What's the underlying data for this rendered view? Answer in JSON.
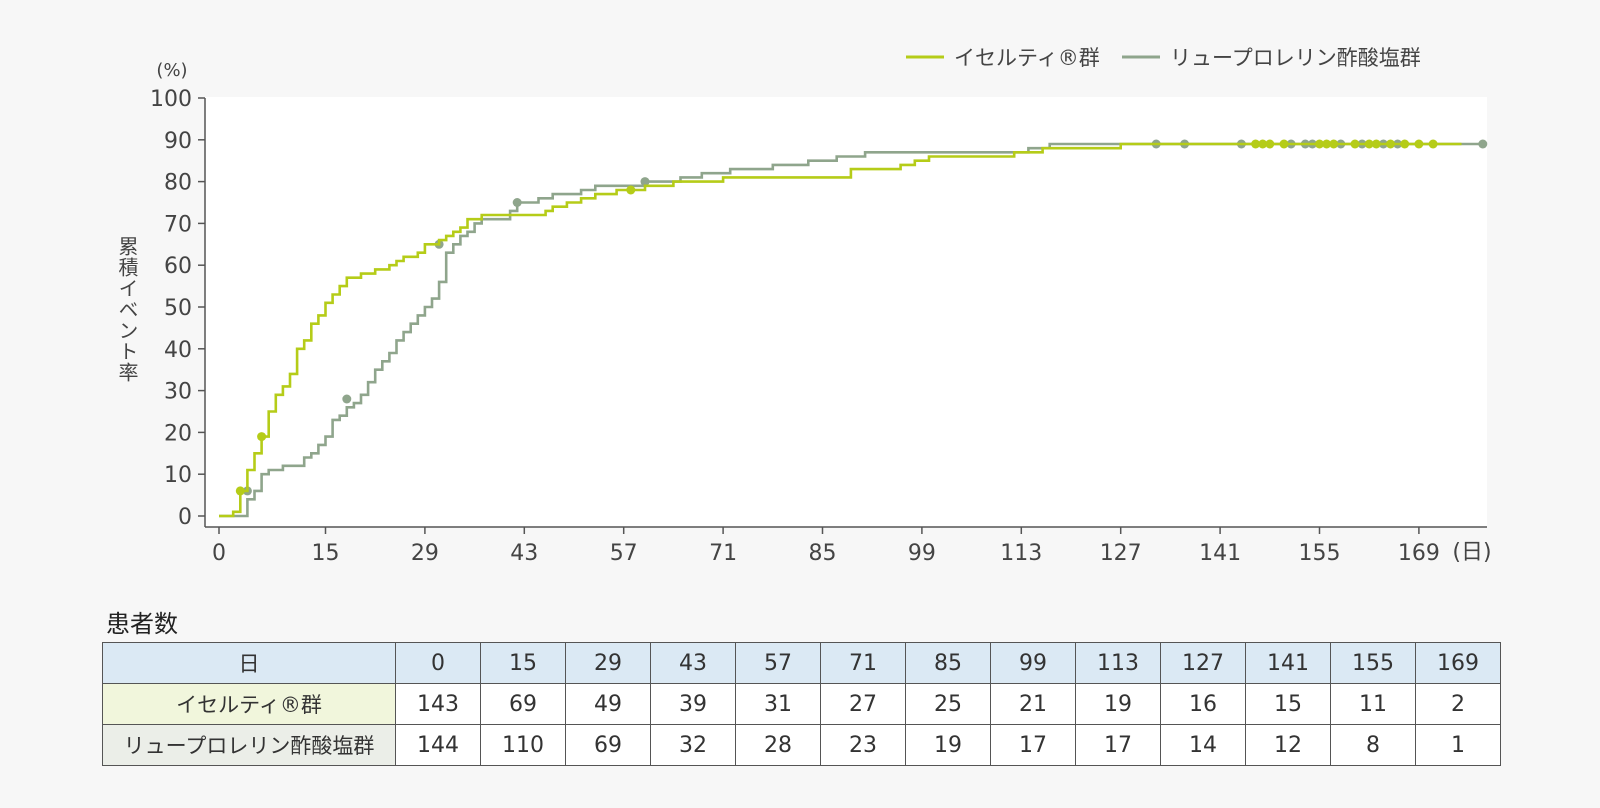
{
  "chart_data": {
    "type": "line",
    "subtype": "step",
    "xlabel": "(日)",
    "ylabel": "累積イベント率",
    "y_unit": "(%)",
    "xlim": [
      0,
      169
    ],
    "ylim": [
      0,
      100
    ],
    "x_ticks": [
      "0",
      "15",
      "29",
      "43",
      "57",
      "71",
      "85",
      "99",
      "113",
      "127",
      "141",
      "155",
      "169"
    ],
    "y_ticks": [
      "0",
      "10",
      "20",
      "30",
      "40",
      "50",
      "60",
      "70",
      "80",
      "90",
      "100"
    ],
    "grid": false,
    "legend_position": "top-right",
    "series": [
      {
        "name": "イセルティ®群",
        "color": "#b5cc18",
        "points": [
          [
            0,
            0
          ],
          [
            2,
            1
          ],
          [
            3,
            6
          ],
          [
            4,
            11
          ],
          [
            5,
            15
          ],
          [
            6,
            19
          ],
          [
            7,
            25
          ],
          [
            8,
            29
          ],
          [
            9,
            31
          ],
          [
            10,
            34
          ],
          [
            11,
            40
          ],
          [
            12,
            42
          ],
          [
            13,
            46
          ],
          [
            14,
            48
          ],
          [
            15,
            51
          ],
          [
            16,
            53
          ],
          [
            17,
            55
          ],
          [
            18,
            57
          ],
          [
            20,
            58
          ],
          [
            22,
            59
          ],
          [
            24,
            60
          ],
          [
            25,
            61
          ],
          [
            26,
            62
          ],
          [
            28,
            63
          ],
          [
            29,
            65
          ],
          [
            31,
            66
          ],
          [
            32,
            67
          ],
          [
            33,
            68
          ],
          [
            34,
            69
          ],
          [
            35,
            71
          ],
          [
            37,
            72
          ],
          [
            46,
            73
          ],
          [
            47,
            74
          ],
          [
            49,
            75
          ],
          [
            51,
            76
          ],
          [
            53,
            77
          ],
          [
            56,
            78
          ],
          [
            60,
            79
          ],
          [
            64,
            80
          ],
          [
            71,
            81
          ],
          [
            89,
            83
          ],
          [
            96,
            84
          ],
          [
            98,
            85
          ],
          [
            100,
            86
          ],
          [
            112,
            87
          ],
          [
            116,
            88
          ],
          [
            127,
            89
          ],
          [
            175,
            89
          ]
        ],
        "censored": [
          [
            3,
            6
          ],
          [
            6,
            19
          ],
          [
            58,
            78
          ],
          [
            146,
            89
          ],
          [
            147,
            89
          ],
          [
            148,
            89
          ],
          [
            150,
            89
          ],
          [
            155,
            89
          ],
          [
            156,
            89
          ],
          [
            157,
            89
          ],
          [
            160,
            89
          ],
          [
            162,
            89
          ],
          [
            163,
            89
          ],
          [
            165,
            89
          ],
          [
            167,
            89
          ],
          [
            169,
            89
          ],
          [
            171,
            89
          ]
        ]
      },
      {
        "name": "リュープロレリン酢酸塩群",
        "color": "#8fa58c",
        "points": [
          [
            0,
            0
          ],
          [
            4,
            4
          ],
          [
            5,
            6
          ],
          [
            6,
            10
          ],
          [
            7,
            11
          ],
          [
            9,
            12
          ],
          [
            12,
            14
          ],
          [
            13,
            15
          ],
          [
            14,
            17
          ],
          [
            15,
            19
          ],
          [
            16,
            23
          ],
          [
            17,
            24
          ],
          [
            18,
            26
          ],
          [
            19,
            27
          ],
          [
            20,
            29
          ],
          [
            21,
            32
          ],
          [
            22,
            35
          ],
          [
            23,
            37
          ],
          [
            24,
            39
          ],
          [
            25,
            42
          ],
          [
            26,
            44
          ],
          [
            27,
            46
          ],
          [
            28,
            48
          ],
          [
            29,
            50
          ],
          [
            30,
            52
          ],
          [
            31,
            56
          ],
          [
            32,
            63
          ],
          [
            33,
            65
          ],
          [
            34,
            67
          ],
          [
            35,
            68
          ],
          [
            36,
            70
          ],
          [
            37,
            71
          ],
          [
            41,
            73
          ],
          [
            42,
            75
          ],
          [
            45,
            76
          ],
          [
            47,
            77
          ],
          [
            51,
            78
          ],
          [
            53,
            79
          ],
          [
            60,
            80
          ],
          [
            65,
            81
          ],
          [
            68,
            82
          ],
          [
            72,
            83
          ],
          [
            78,
            84
          ],
          [
            83,
            85
          ],
          [
            87,
            86
          ],
          [
            91,
            87
          ],
          [
            114,
            88
          ],
          [
            117,
            89
          ],
          [
            178,
            89
          ]
        ],
        "censored": [
          [
            4,
            6
          ],
          [
            18,
            28
          ],
          [
            31,
            65
          ],
          [
            42,
            75
          ],
          [
            60,
            80
          ],
          [
            132,
            89
          ],
          [
            136,
            89
          ],
          [
            144,
            89
          ],
          [
            151,
            89
          ],
          [
            153,
            89
          ],
          [
            154,
            89
          ],
          [
            158,
            89
          ],
          [
            161,
            89
          ],
          [
            164,
            89
          ],
          [
            166,
            89
          ],
          [
            178,
            89
          ]
        ]
      }
    ]
  },
  "at_risk_table": {
    "title": "患者数",
    "header_label": "日",
    "days": [
      "0",
      "15",
      "29",
      "43",
      "57",
      "71",
      "85",
      "99",
      "113",
      "127",
      "141",
      "155",
      "169"
    ],
    "rows": [
      {
        "label": "イセルティ®群",
        "values": [
          "143",
          "69",
          "49",
          "39",
          "31",
          "27",
          "25",
          "21",
          "19",
          "16",
          "15",
          "11",
          "2"
        ]
      },
      {
        "label": "リュープロレリン酢酸塩群",
        "values": [
          "144",
          "110",
          "69",
          "32",
          "28",
          "23",
          "19",
          "17",
          "17",
          "14",
          "12",
          "8",
          "1"
        ]
      }
    ]
  }
}
